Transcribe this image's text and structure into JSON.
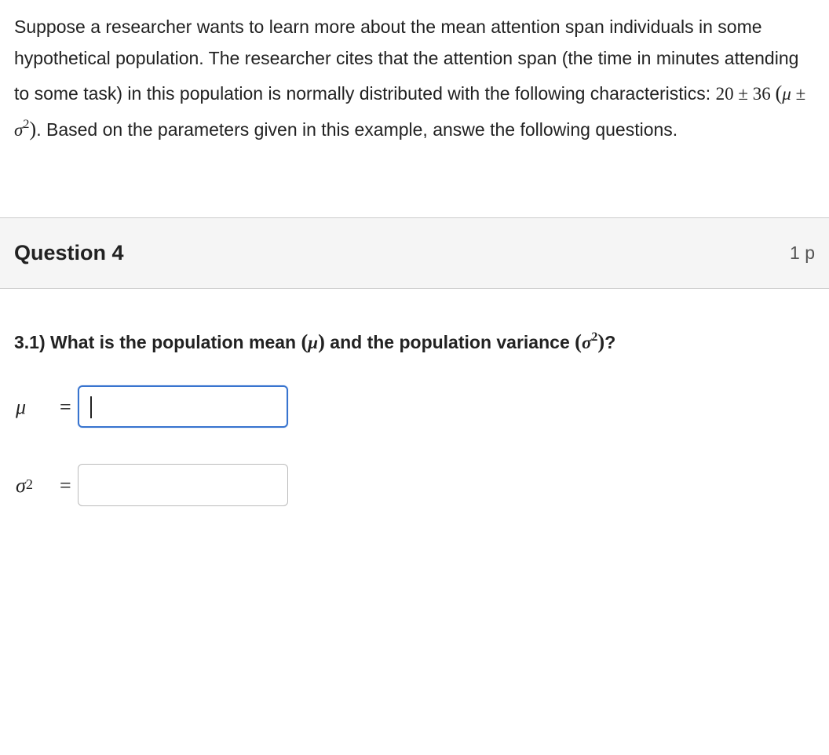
{
  "intro": {
    "text_parts": {
      "p1": "Suppose a researcher wants to learn more about the mean attention span ",
      "p2": "individuals in some hypothetical population. The researcher cites that the attention span (the time in minutes attending to some task) in this population is normally distributed with the following characteristics: ",
      "params_numeric": "20 ± 36 ",
      "params_symbolic_open": "(",
      "params_mu": "μ",
      "params_pm": " ± ",
      "params_sigma": "σ",
      "params_exp": "2",
      "params_symbolic_close": ")",
      "p3": ". Based on the parameters given in this example, answe",
      "p4": "the following questions."
    }
  },
  "question": {
    "header_title": "Question 4",
    "header_points": "1 p",
    "sub_prefix": "3.1) What is the population mean ",
    "mu_open": "(",
    "mu_sym": "μ",
    "mu_close": ")",
    "mid": " and the population variance ",
    "sig_open": "(",
    "sig_sym": "σ",
    "sig_exp": "2",
    "sig_close": ")",
    "sub_suffix": "?"
  },
  "answers": {
    "mu": {
      "label": "μ",
      "equals": "=",
      "value": "",
      "focused": true
    },
    "sigma2": {
      "label_sigma": "σ",
      "label_exp": "2",
      "equals": "=",
      "value": "",
      "focused": false
    }
  },
  "styling": {
    "body_bg": "#ffffff",
    "text_color": "#222222",
    "header_bg": "#f5f5f5",
    "header_border": "#cccccc",
    "input_border": "#bbbbbb",
    "input_focus_border": "#3874cf",
    "font_size_body": 23,
    "font_size_title": 27,
    "input_width": 268,
    "input_height": 54
  }
}
